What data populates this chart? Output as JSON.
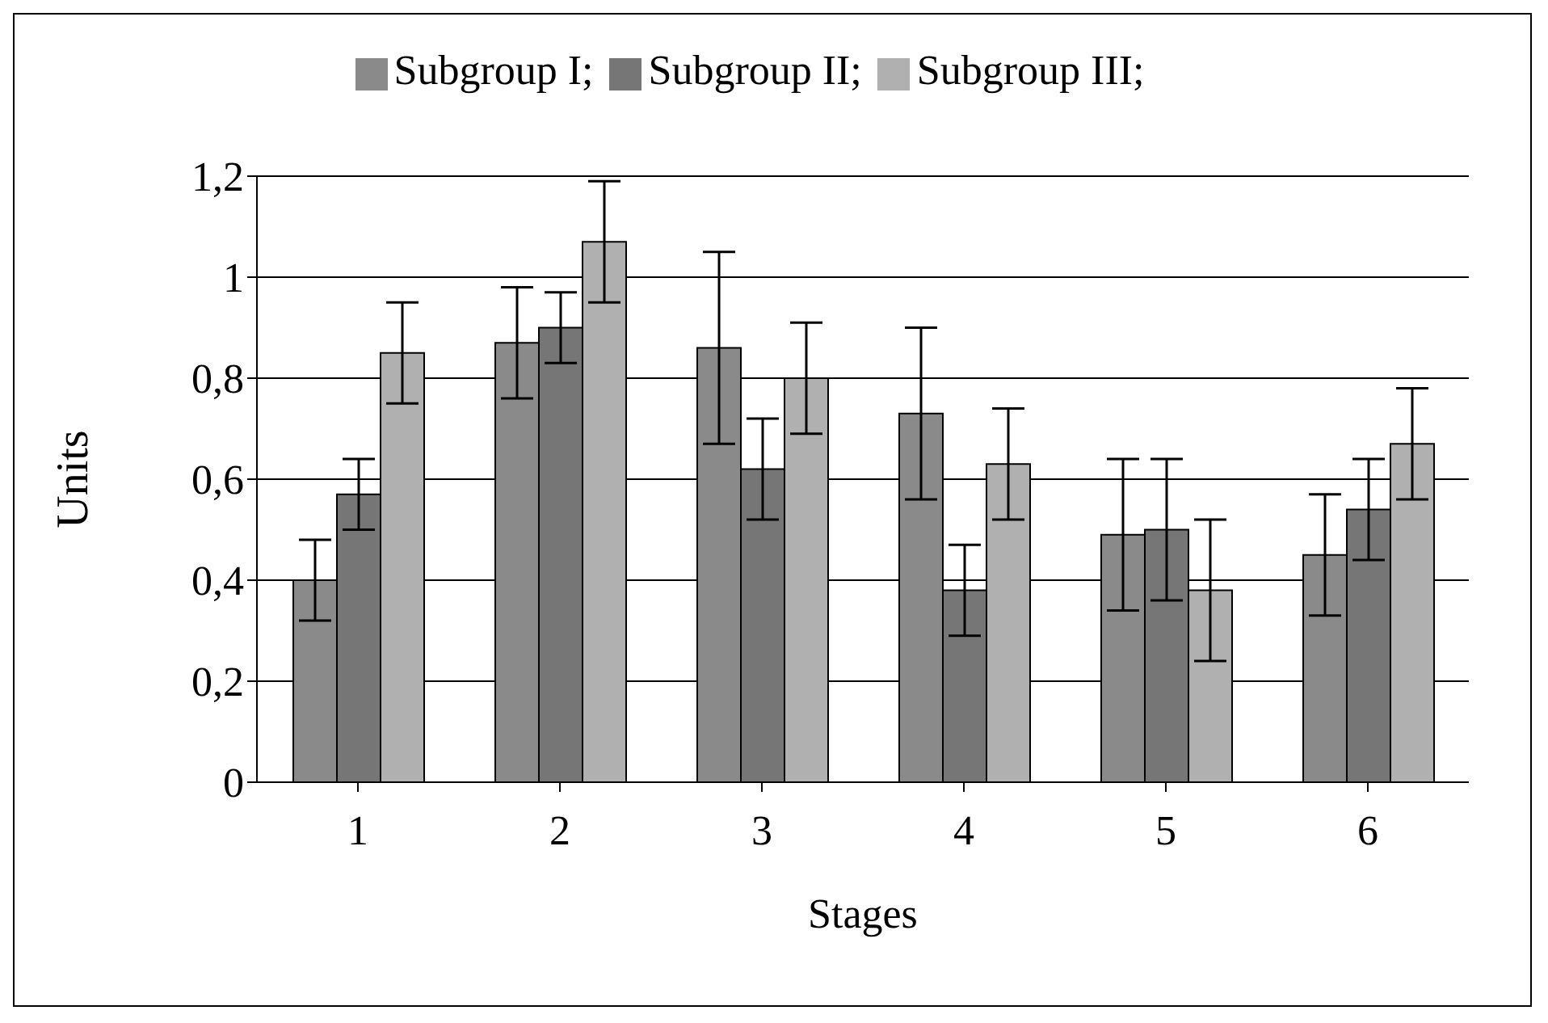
{
  "chart_data": {
    "type": "bar",
    "xlabel": "Stages",
    "ylabel": "Units",
    "categories": [
      "1",
      "2",
      "3",
      "4",
      "5",
      "6"
    ],
    "series": [
      {
        "name": "Subgroup I;",
        "color": "#8a8a8a",
        "values": [
          0.4,
          0.87,
          0.86,
          0.73,
          0.49,
          0.45
        ],
        "errors": [
          0.08,
          0.11,
          0.19,
          0.17,
          0.15,
          0.12
        ]
      },
      {
        "name": "Subgroup II;",
        "color": "#767676",
        "values": [
          0.57,
          0.9,
          0.62,
          0.38,
          0.5,
          0.54
        ],
        "errors": [
          0.07,
          0.07,
          0.1,
          0.09,
          0.14,
          0.1
        ]
      },
      {
        "name": "Subgroup III;",
        "color": "#b0b0b0",
        "values": [
          0.85,
          1.07,
          0.8,
          0.63,
          0.38,
          0.67
        ],
        "errors": [
          0.1,
          0.12,
          0.11,
          0.11,
          0.14,
          0.11
        ]
      }
    ],
    "ylim": [
      0,
      1.2
    ],
    "yticks": [
      0,
      {
        "value": 0.2,
        "label": "0,2"
      },
      {
        "value": 0.4,
        "label": "0,4"
      },
      {
        "value": 0.6,
        "label": "0,6"
      },
      {
        "value": 0.8,
        "label": "0,8"
      },
      1,
      {
        "value": 1.2,
        "label": "1,2"
      }
    ],
    "grid": "y",
    "legend": "top"
  }
}
